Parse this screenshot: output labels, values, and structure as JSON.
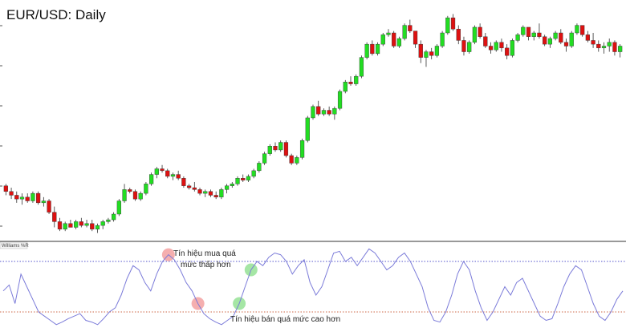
{
  "chart_title": "EUR/USD: Daily",
  "indicator_label": "Williams %R",
  "annotations": {
    "buy_signal_line1": "Tín hiệu mua quá",
    "buy_signal_line2": "mức thấp hơn",
    "sell_signal": "Tín hiệu bán quá mức cao hơn"
  },
  "colors": {
    "up_candle": "#22dd22",
    "down_candle": "#dd1111",
    "wick": "#333333",
    "williams_line": "#7b7bd9",
    "overbought_level": "#5555cc",
    "oversold_level": "#cc6644",
    "buy_marker": "#f4a6a6",
    "sell_marker": "#9be39b"
  },
  "chart_data": [
    {
      "type": "candlestick",
      "title": "EUR/USD: Daily",
      "series": [
        {
          "name": "",
          "ohlc": [
            [
              55,
              56,
              50,
              52
            ],
            [
              52,
              54,
              48,
              50
            ],
            [
              50,
              52,
              46,
              48
            ],
            [
              48,
              51,
              45,
              49
            ],
            [
              49,
              51,
              46,
              47
            ],
            [
              47,
              52,
              46,
              51
            ],
            [
              51,
              52,
              45,
              46
            ],
            [
              46,
              49,
              44,
              47
            ],
            [
              47,
              48,
              40,
              41
            ],
            [
              41,
              44,
              33,
              36
            ],
            [
              36,
              38,
              31,
              32
            ],
            [
              32,
              36,
              31,
              35
            ],
            [
              35,
              37,
              33,
              33
            ],
            [
              33,
              37,
              32,
              36
            ],
            [
              36,
              38,
              33,
              34
            ],
            [
              34,
              37,
              33,
              35
            ],
            [
              35,
              37,
              31,
              32
            ],
            [
              32,
              35,
              30,
              34
            ],
            [
              34,
              37,
              32,
              36
            ],
            [
              36,
              38,
              35,
              37
            ],
            [
              37,
              41,
              36,
              40
            ],
            [
              40,
              48,
              39,
              47
            ],
            [
              47,
              56,
              46,
              53
            ],
            [
              53,
              54,
              51,
              52
            ],
            [
              52,
              53,
              47,
              48
            ],
            [
              48,
              52,
              47,
              51
            ],
            [
              51,
              57,
              50,
              56
            ],
            [
              56,
              62,
              55,
              61
            ],
            [
              61,
              65,
              59,
              64
            ],
            [
              64,
              66,
              62,
              63
            ],
            [
              63,
              64,
              59,
              60
            ],
            [
              60,
              62,
              58,
              61
            ],
            [
              61,
              63,
              58,
              59
            ],
            [
              59,
              60,
              54,
              55
            ],
            [
              55,
              56,
              53,
              54
            ],
            [
              54,
              57,
              52,
              53
            ],
            [
              53,
              54,
              50,
              51
            ],
            [
              51,
              53,
              49,
              52
            ],
            [
              52,
              53,
              49,
              50
            ],
            [
              50,
              52,
              48,
              49
            ],
            [
              49,
              54,
              48,
              53
            ],
            [
              53,
              56,
              51,
              55
            ],
            [
              55,
              57,
              54,
              56
            ],
            [
              56,
              60,
              55,
              59
            ],
            [
              59,
              61,
              57,
              58
            ],
            [
              58,
              61,
              57,
              60
            ],
            [
              60,
              64,
              59,
              63
            ],
            [
              63,
              68,
              62,
              67
            ],
            [
              67,
              73,
              66,
              72
            ],
            [
              72,
              77,
              71,
              76
            ],
            [
              76,
              78,
              73,
              74
            ],
            [
              74,
              79,
              73,
              78
            ],
            [
              78,
              79,
              70,
              71
            ],
            [
              71,
              72,
              66,
              67
            ],
            [
              67,
              71,
              66,
              70
            ],
            [
              70,
              80,
              69,
              79
            ],
            [
              79,
              92,
              78,
              91
            ],
            [
              91,
              98,
              90,
              97
            ],
            [
              97,
              100,
              92,
              93
            ],
            [
              93,
              96,
              92,
              95
            ],
            [
              95,
              97,
              92,
              93
            ],
            [
              93,
              97,
              90,
              96
            ],
            [
              96,
              106,
              95,
              105
            ],
            [
              105,
              111,
              104,
              110
            ],
            [
              110,
              113,
              108,
              109
            ],
            [
              109,
              114,
              108,
              113
            ],
            [
              113,
              124,
              112,
              123
            ],
            [
              123,
              131,
              122,
              130
            ],
            [
              130,
              132,
              124,
              125
            ],
            [
              125,
              131,
              124,
              130
            ],
            [
              130,
              136,
              129,
              135
            ],
            [
              135,
              138,
              134,
              136
            ],
            [
              136,
              137,
              128,
              129
            ],
            [
              129,
              134,
              128,
              133
            ],
            [
              133,
              141,
              132,
              140
            ],
            [
              140,
              143,
              136,
              137
            ],
            [
              137,
              136,
              128,
              130
            ],
            [
              130,
              132,
              120,
              123
            ],
            [
              123,
              127,
              118,
              126
            ],
            [
              126,
              128,
              122,
              124
            ],
            [
              124,
              130,
              123,
              129
            ],
            [
              129,
              137,
              128,
              136
            ],
            [
              136,
              145,
              135,
              144
            ],
            [
              144,
              146,
              137,
              138
            ],
            [
              138,
              140,
              130,
              132
            ],
            [
              132,
              134,
              124,
              126
            ],
            [
              126,
              132,
              125,
              131
            ],
            [
              131,
              140,
              130,
              139
            ],
            [
              139,
              141,
              133,
              134
            ],
            [
              134,
              136,
              128,
              129
            ],
            [
              129,
              131,
              125,
              127
            ],
            [
              127,
              132,
              126,
              131
            ],
            [
              131,
              133,
              126,
              128
            ],
            [
              128,
              130,
              122,
              124
            ],
            [
              124,
              133,
              123,
              132
            ],
            [
              132,
              136,
              131,
              135
            ],
            [
              135,
              140,
              134,
              139
            ],
            [
              139,
              138,
              132,
              134
            ],
            [
              134,
              137,
              132,
              136
            ],
            [
              136,
              141,
              133,
              134
            ],
            [
              134,
              135,
              129,
              130
            ],
            [
              130,
              134,
              128,
              133
            ],
            [
              133,
              137,
              132,
              136
            ],
            [
              136,
              138,
              130,
              131
            ],
            [
              131,
              133,
              126,
              129
            ],
            [
              129,
              137,
              128,
              136
            ],
            [
              136,
              141,
              135,
              140
            ],
            [
              140,
              139,
              134,
              135
            ],
            [
              135,
              137,
              131,
              132
            ],
            [
              132,
              136,
              128,
              130
            ],
            [
              130,
              132,
              126,
              128
            ],
            [
              128,
              131,
              125,
              129
            ],
            [
              129,
              133,
              126,
              131
            ],
            [
              131,
              132,
              124,
              126
            ],
            [
              126,
              130,
              123,
              129
            ]
          ]
        }
      ]
    },
    {
      "type": "line",
      "title": "Williams %R",
      "ylim": [
        -100,
        0
      ],
      "levels": [
        -20,
        -80
      ],
      "series": [
        {
          "name": "Williams %R",
          "values": [
            -55,
            -48,
            -70,
            -35,
            -50,
            -65,
            -80,
            -85,
            -90,
            -95,
            -92,
            -88,
            -85,
            -82,
            -90,
            -92,
            -95,
            -88,
            -80,
            -75,
            -60,
            -40,
            -25,
            -30,
            -45,
            -55,
            -35,
            -20,
            -12,
            -18,
            -30,
            -45,
            -55,
            -70,
            -82,
            -88,
            -92,
            -95,
            -90,
            -85,
            -70,
            -50,
            -30,
            -20,
            -25,
            -15,
            -10,
            -12,
            -20,
            -35,
            -25,
            -18,
            -45,
            -60,
            -50,
            -30,
            -10,
            -8,
            -20,
            -15,
            -25,
            -15,
            -5,
            -10,
            -20,
            -30,
            -25,
            -15,
            -10,
            -20,
            -35,
            -50,
            -75,
            -90,
            -92,
            -80,
            -60,
            -35,
            -20,
            -30,
            -55,
            -75,
            -90,
            -80,
            -65,
            -50,
            -60,
            -45,
            -40,
            -55,
            -70,
            -85,
            -90,
            -88,
            -70,
            -50,
            -35,
            -25,
            -30,
            -50,
            -70,
            -85,
            -90,
            -80,
            -65,
            -55
          ]
        }
      ],
      "annotations": [
        {
          "text": "Tín hiệu mua quá mức thấp hơn",
          "marker_index": [
            28,
            33
          ]
        },
        {
          "text": "Tín hiệu bán quá mức cao hơn",
          "marker_index": [
            40,
            42
          ]
        }
      ]
    }
  ]
}
